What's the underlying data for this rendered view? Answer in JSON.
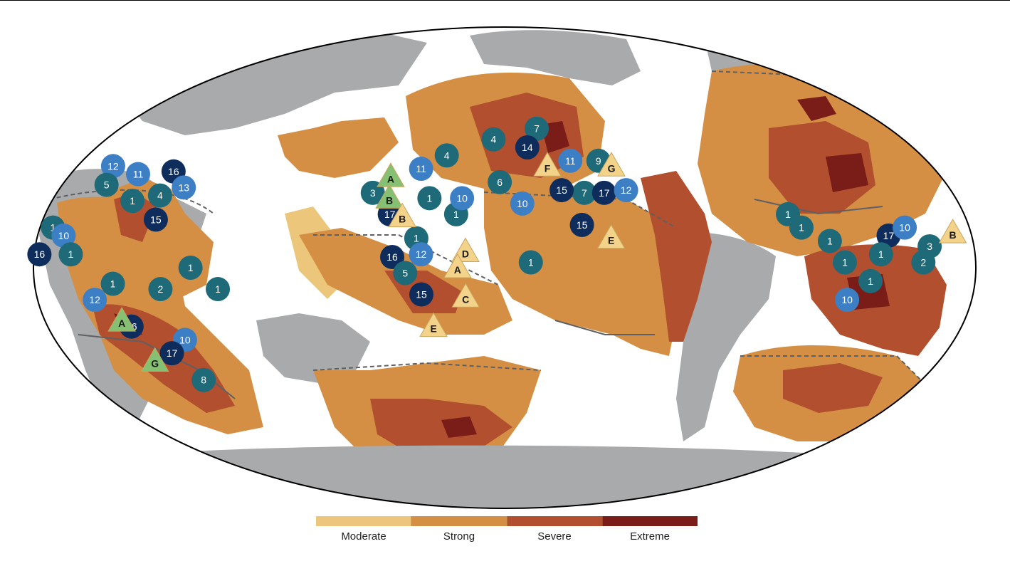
{
  "colors": {
    "ocean": "#ffffff",
    "land": "#a9aaac",
    "moderate": "#ecc67a",
    "strong": "#d48f45",
    "severe": "#b24f2e",
    "extreme": "#7a1d18",
    "border": "#5f6064",
    "marker_teal": "#1f6a78",
    "marker_blue": "#3d7fc4",
    "marker_navy": "#0f2d5c",
    "triangle_yellow": "#f3d28a",
    "triangle_green": "#86c173"
  },
  "legend": {
    "items": [
      {
        "label": "Moderate",
        "color": "#ecc67a"
      },
      {
        "label": "Strong",
        "color": "#d48f45"
      },
      {
        "label": "Severe",
        "color": "#b24f2e"
      },
      {
        "label": "Extreme",
        "color": "#7a1d18"
      }
    ]
  },
  "markers": {
    "circles": [
      {
        "label": "1",
        "style": "teal",
        "lon": -99,
        "lat": 20
      },
      {
        "label": "1",
        "style": "teal",
        "lon": -95,
        "lat": 15
      },
      {
        "label": "1",
        "style": "teal",
        "lon": -85,
        "lat": 10
      },
      {
        "label": "1",
        "style": "teal",
        "lon": -80,
        "lat": 2
      },
      {
        "label": "1",
        "style": "teal",
        "lon": -70,
        "lat": -5
      },
      {
        "label": "10",
        "style": "blue",
        "lon": -78,
        "lat": -12
      },
      {
        "label": "17",
        "style": "navy",
        "lon": -62,
        "lat": 12
      },
      {
        "label": "10",
        "style": "blue",
        "lon": -55,
        "lat": 15
      },
      {
        "label": "1",
        "style": "teal",
        "lon": -66,
        "lat": 5
      },
      {
        "label": "2",
        "style": "teal",
        "lon": -50,
        "lat": 2
      },
      {
        "label": "3",
        "style": "teal",
        "lon": -47,
        "lat": 8
      },
      {
        "label": "16",
        "style": "navy",
        "lon": -28,
        "lat": 5
      },
      {
        "label": "1",
        "style": "teal",
        "lon": -25,
        "lat": 15
      },
      {
        "label": "10",
        "style": "blue",
        "lon": -20,
        "lat": 12
      },
      {
        "label": "1",
        "style": "teal",
        "lon": -16,
        "lat": 5
      },
      {
        "label": "12",
        "style": "blue",
        "lon": -15,
        "lat": 38
      },
      {
        "label": "5",
        "style": "teal",
        "lon": -12,
        "lat": 31
      },
      {
        "label": "11",
        "style": "blue",
        "lon": -2,
        "lat": 35
      },
      {
        "label": "16",
        "style": "navy",
        "lon": 12,
        "lat": 36
      },
      {
        "label": "1",
        "style": "teal",
        "lon": 2,
        "lat": 25
      },
      {
        "label": "4",
        "style": "teal",
        "lon": 12,
        "lat": 27
      },
      {
        "label": "13",
        "style": "blue",
        "lon": 20,
        "lat": 30
      },
      {
        "label": "15",
        "style": "navy",
        "lon": 14,
        "lat": 18
      },
      {
        "label": "1",
        "style": "teal",
        "lon": 30,
        "lat": 0
      },
      {
        "label": "1",
        "style": "teal",
        "lon": 40,
        "lat": -8
      },
      {
        "label": "2",
        "style": "teal",
        "lon": 18,
        "lat": -8
      },
      {
        "label": "1",
        "style": "teal",
        "lon": 0,
        "lat": -6
      },
      {
        "label": "12",
        "style": "blue",
        "lon": -8,
        "lat": -12
      },
      {
        "label": "16",
        "style": "navy",
        "lon": 3,
        "lat": -22
      },
      {
        "label": "10",
        "style": "blue",
        "lon": 22,
        "lat": -27
      },
      {
        "label": "17",
        "style": "navy",
        "lon": 14,
        "lat": -32
      },
      {
        "label": "8",
        "style": "teal",
        "lon": 20,
        "lat": -42
      },
      {
        "label": "3",
        "style": "teal",
        "lon": 97,
        "lat": 28
      },
      {
        "label": "17",
        "style": "navy",
        "lon": 105,
        "lat": 20
      },
      {
        "label": "1",
        "style": "teal",
        "lon": 120,
        "lat": 26
      },
      {
        "label": "1",
        "style": "teal",
        "lon": 116,
        "lat": 11
      },
      {
        "label": "16",
        "style": "navy",
        "lon": 107,
        "lat": 4
      },
      {
        "label": "5",
        "style": "teal",
        "lon": 112,
        "lat": -2
      },
      {
        "label": "15",
        "style": "navy",
        "lon": 118,
        "lat": -10
      },
      {
        "label": "12",
        "style": "blue",
        "lon": 118,
        "lat": 5
      },
      {
        "label": "1",
        "style": "teal",
        "lon": 131,
        "lat": 20
      },
      {
        "label": "10",
        "style": "blue",
        "lon": 133,
        "lat": 26
      },
      {
        "label": "11",
        "style": "blue",
        "lon": 115,
        "lat": 37
      },
      {
        "label": "4",
        "style": "teal",
        "lon": 125,
        "lat": 42
      },
      {
        "label": "4",
        "style": "teal",
        "lon": 145,
        "lat": 48
      },
      {
        "label": "7",
        "style": "teal",
        "lon": 165,
        "lat": 52
      },
      {
        "label": "14",
        "style": "navy",
        "lon": 160,
        "lat": 45
      },
      {
        "label": "6",
        "style": "teal",
        "lon": 148,
        "lat": 32
      },
      {
        "label": "10",
        "style": "blue",
        "lon": 157,
        "lat": 24
      },
      {
        "label": "1",
        "style": "teal",
        "lon": 160,
        "lat": 2
      },
      {
        "label": "11",
        "style": "blue",
        "lon": 178,
        "lat": 40
      },
      {
        "label": "9",
        "style": "teal",
        "lon": -170,
        "lat": 40
      },
      {
        "label": "7",
        "style": "teal",
        "lon": 182,
        "lat": 28
      },
      {
        "label": "15",
        "style": "navy",
        "lon": 173,
        "lat": 29
      },
      {
        "label": "17",
        "style": "navy",
        "lon": -170,
        "lat": 28
      },
      {
        "label": "12",
        "style": "blue",
        "lon": -161,
        "lat": 29
      },
      {
        "label": "15",
        "style": "navy",
        "lon": 180,
        "lat": 16
      }
    ],
    "triangles": [
      {
        "label": "B",
        "style": "yellow",
        "lon": -37,
        "lat": 13
      },
      {
        "label": "A",
        "style": "green",
        "lon": 0,
        "lat": -20
      },
      {
        "label": "G",
        "style": "green",
        "lon": 5,
        "lat": -35
      },
      {
        "label": "A",
        "style": "green",
        "lon": 103,
        "lat": 34
      },
      {
        "label": "B",
        "style": "green",
        "lon": 104,
        "lat": 26
      },
      {
        "label": "B",
        "style": "yellow",
        "lon": 110,
        "lat": 19
      },
      {
        "label": "D",
        "style": "yellow",
        "lon": 135,
        "lat": 6
      },
      {
        "label": "A",
        "style": "yellow",
        "lon": 132,
        "lat": 0
      },
      {
        "label": "C",
        "style": "yellow",
        "lon": 135,
        "lat": -11
      },
      {
        "label": "E",
        "style": "yellow",
        "lon": 122,
        "lat": -22
      },
      {
        "label": "E",
        "style": "yellow",
        "lon": 191,
        "lat": 11
      },
      {
        "label": "F",
        "style": "yellow",
        "lon": 168,
        "lat": 38
      },
      {
        "label": "G",
        "style": "yellow",
        "lon": -165,
        "lat": 38
      }
    ]
  }
}
